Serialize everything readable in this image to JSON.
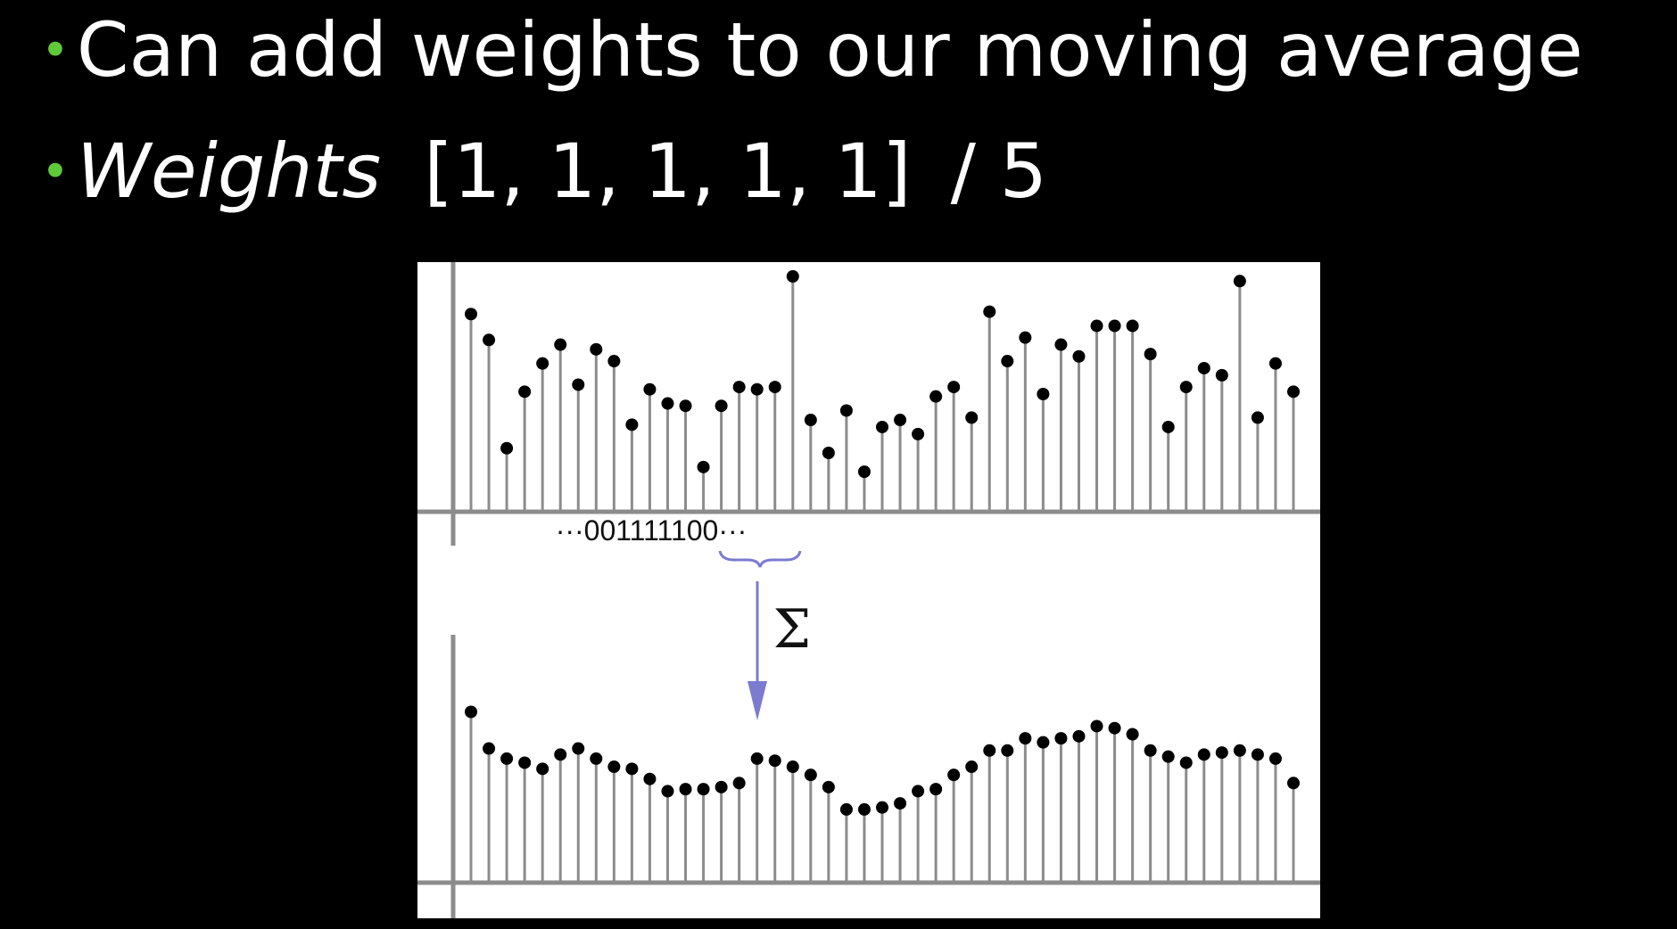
{
  "slide": {
    "bullet_symbol": "•",
    "bullets": [
      {
        "text": "Can add weights to our moving average"
      },
      {
        "label": "Weights",
        "value": "[1, 1, 1, 1, 1]",
        "divisor": "/ 5"
      }
    ]
  },
  "figure": {
    "kernel_text": "···001111100···",
    "sum_symbol": "Σ",
    "arrow_color": "#7b7bd0",
    "stem_color": "#8c8c8c",
    "dot_color": "#000000",
    "input_signal": [
      0.84,
      0.73,
      0.27,
      0.51,
      0.63,
      0.71,
      0.54,
      0.69,
      0.64,
      0.37,
      0.52,
      0.46,
      0.45,
      0.19,
      0.45,
      0.53,
      0.52,
      0.53,
      1.0,
      0.39,
      0.25,
      0.43,
      0.17,
      0.36,
      0.39,
      0.33,
      0.49,
      0.53,
      0.4,
      0.85,
      0.64,
      0.74,
      0.5,
      0.71,
      0.66,
      0.79,
      0.79,
      0.79,
      0.67,
      0.36,
      0.53,
      0.61,
      0.58,
      0.98,
      0.4,
      0.63,
      0.51
    ],
    "smoothed_signal": [
      0.84,
      0.66,
      0.61,
      0.59,
      0.56,
      0.63,
      0.66,
      0.61,
      0.57,
      0.56,
      0.51,
      0.45,
      0.46,
      0.46,
      0.47,
      0.49,
      0.61,
      0.6,
      0.57,
      0.53,
      0.47,
      0.36,
      0.36,
      0.37,
      0.39,
      0.45,
      0.46,
      0.53,
      0.57,
      0.65,
      0.65,
      0.71,
      0.69,
      0.71,
      0.72,
      0.77,
      0.76,
      0.73,
      0.65,
      0.62,
      0.59,
      0.63,
      0.64,
      0.65,
      0.63,
      0.61,
      0.49
    ]
  }
}
